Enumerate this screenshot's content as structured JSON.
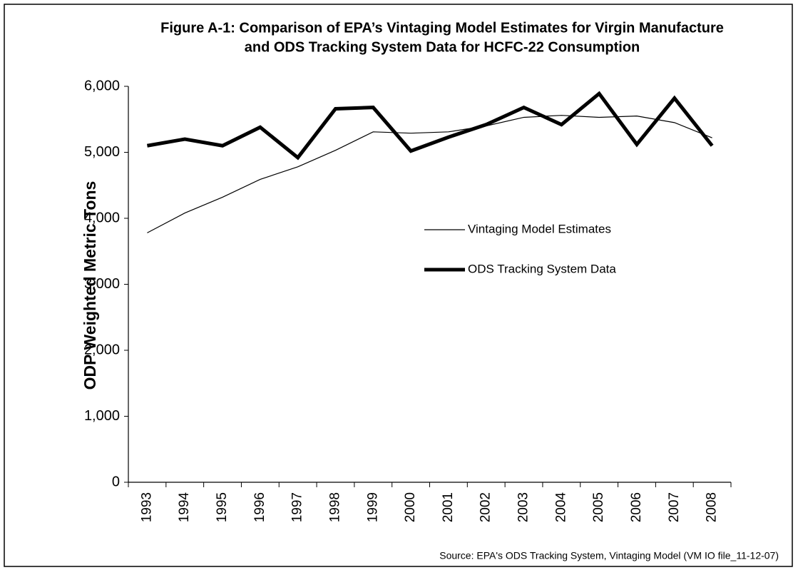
{
  "chart_data": {
    "type": "line",
    "title": [
      "Figure A-1: Comparison of EPA’s Vintaging Model Estimates for Virgin Manufacture",
      "and ODS Tracking System Data for HCFC-22 Consumption"
    ],
    "y_label": "ODP Weighted Metric Tons",
    "source": "Source: EPA's ODS Tracking System, Vintaging Model (VM IO file_11-12-07)",
    "categories": [
      "1993",
      "1994",
      "1995",
      "1996",
      "1997",
      "1998",
      "1999",
      "2000",
      "2001",
      "2002",
      "2003",
      "2004",
      "2005",
      "2006",
      "2007",
      "2008"
    ],
    "series": [
      {
        "name": "Vintaging Model Estimates",
        "color": "#000000",
        "width": 1.2,
        "values": [
          3780,
          4080,
          4320,
          4590,
          4780,
          5030,
          5310,
          5290,
          5310,
          5400,
          5530,
          5560,
          5530,
          5550,
          5450,
          5220
        ]
      },
      {
        "name": "ODS Tracking System Data",
        "color": "#000000",
        "width": 5,
        "values": [
          5100,
          5200,
          5100,
          5380,
          4920,
          5660,
          5680,
          5020,
          5230,
          5420,
          5680,
          5420,
          5890,
          5120,
          5820,
          5100
        ]
      }
    ],
    "ylim": [
      0,
      6000
    ],
    "yticks": [
      0,
      {
        "value": 1000,
        "label": "1,000"
      },
      {
        "value": 2000,
        "label": "2,000"
      },
      {
        "value": 3000,
        "label": "3,000"
      },
      {
        "value": 4000,
        "label": "4,000"
      },
      {
        "value": 5000,
        "label": "5,000"
      },
      {
        "value": 6000,
        "label": "6,000"
      }
    ],
    "grid": false
  }
}
